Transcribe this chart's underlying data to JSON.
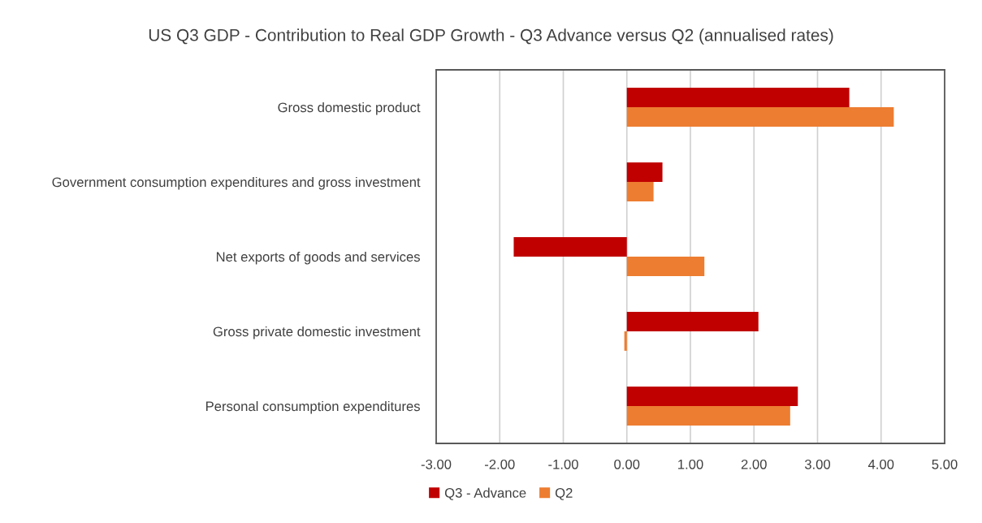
{
  "chart_data": {
    "type": "bar",
    "orientation": "horizontal",
    "title": "US Q3 GDP - Contribution to Real GDP Growth - Q3 Advance versus Q2 (annualised rates)",
    "categories": [
      "Gross domestic product",
      "Government consumption expenditures and gross investment",
      "Net exports of goods and services",
      "Gross private domestic investment",
      "Personal consumption expenditures"
    ],
    "series": [
      {
        "name": "Q3 - Advance",
        "color": "#c00000",
        "values": [
          3.5,
          0.56,
          -1.78,
          2.07,
          2.69
        ]
      },
      {
        "name": "Q2",
        "color": "#ed7d31",
        "values": [
          4.2,
          0.42,
          1.22,
          -0.04,
          2.57
        ]
      }
    ],
    "xlim": [
      -3,
      5
    ],
    "xticks": [
      {
        "value": -3,
        "label": "-3.00"
      },
      {
        "value": -2,
        "label": "-2.00"
      },
      {
        "value": -1,
        "label": "-1.00"
      },
      {
        "value": 0,
        "label": "0.00"
      },
      {
        "value": 1,
        "label": "1.00"
      },
      {
        "value": 2,
        "label": "2.00"
      },
      {
        "value": 3,
        "label": "3.00"
      },
      {
        "value": 4,
        "label": "4.00"
      },
      {
        "value": 5,
        "label": "5.00"
      }
    ],
    "grid": "x",
    "legend": "bottom"
  }
}
